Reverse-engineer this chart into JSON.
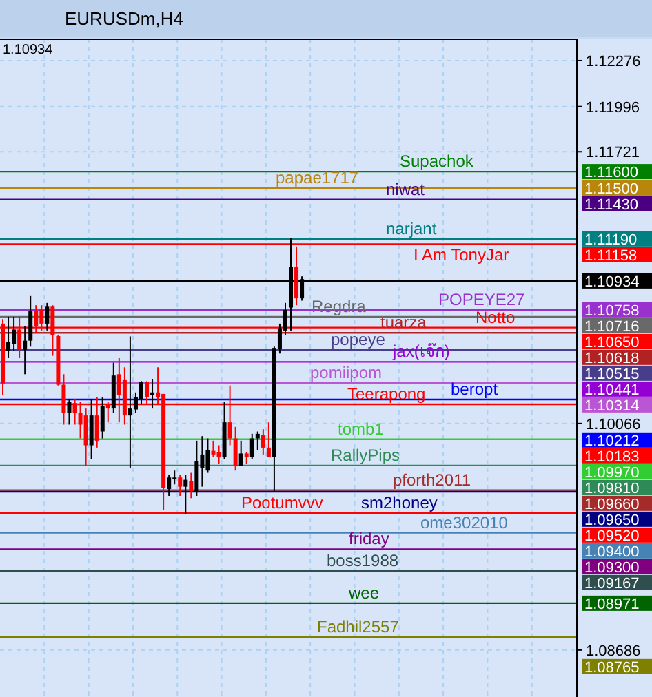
{
  "chart_data": {
    "type": "candlestick",
    "title": "EURUSDm,H4",
    "categories": [
      null,
      null,
      null,
      null,
      null,
      null,
      null,
      null,
      null,
      null,
      null,
      null,
      null,
      null,
      null,
      null,
      null,
      null,
      null,
      null,
      null,
      null,
      null,
      null,
      null,
      null,
      null,
      null,
      null,
      null,
      null,
      null,
      null,
      null,
      null,
      null,
      null,
      null,
      null,
      null,
      null,
      null,
      null,
      null,
      null,
      null,
      null,
      null,
      null,
      null,
      null,
      null,
      null,
      null,
      null,
      null,
      null,
      null,
      null,
      null,
      null,
      null,
      null,
      null,
      null,
      null,
      null,
      null,
      null,
      null,
      null,
      null,
      null,
      null,
      null,
      null,
      null,
      null,
      null,
      null,
      null,
      null,
      null,
      null,
      null,
      null,
      null,
      null,
      null,
      null,
      null,
      null,
      null,
      null,
      null,
      null,
      null,
      null,
      null,
      null,
      null,
      null,
      null,
      null
    ],
    "ohlc": [
      [
        1.10674,
        1.10702,
        1.1024,
        1.1031
      ],
      [
        1.10506,
        1.10716,
        1.10464,
        1.10562
      ],
      [
        1.10548,
        1.10716,
        1.10506,
        1.10638
      ],
      [
        1.10638,
        1.10716,
        1.10464,
        1.1052
      ],
      [
        1.10515,
        1.1066,
        1.10366,
        1.1057
      ],
      [
        1.1057,
        1.10842,
        1.10534,
        1.10752
      ],
      [
        1.10752,
        1.10786,
        1.10618,
        1.1066
      ],
      [
        1.10758,
        1.10786,
        1.10632,
        1.10674
      ],
      [
        1.10674,
        1.108,
        1.10632,
        1.10777
      ],
      [
        1.10777,
        1.10786,
        1.10478,
        1.10604
      ],
      [
        1.10598,
        1.10604,
        1.10297,
        1.10302
      ],
      [
        1.10302,
        1.10366,
        1.10059,
        1.10129
      ],
      [
        1.10129,
        1.10213,
        1.10059,
        1.10199
      ],
      [
        1.1019,
        1.10213,
        1.10059,
        1.10129
      ],
      [
        1.10129,
        1.10199,
        1.09975,
        1.10059
      ],
      [
        1.10115,
        1.10157,
        1.09807,
        1.09933
      ],
      [
        1.09933,
        1.10213,
        1.09849,
        1.10115
      ],
      [
        1.10115,
        1.10227,
        1.09919,
        1.09961
      ],
      [
        1.10017,
        1.10227,
        1.09975,
        1.10171
      ],
      [
        1.10185,
        1.10199,
        1.10073,
        1.10157
      ],
      [
        1.10157,
        1.10436,
        1.10129,
        1.10358
      ],
      [
        1.10366,
        1.10464,
        1.10073,
        1.1024
      ],
      [
        1.1033,
        1.10408,
        1.10059,
        1.10115
      ],
      [
        1.10115,
        1.10596,
        1.09793,
        1.10157
      ],
      [
        1.10151,
        1.10255,
        1.10129,
        1.10227
      ],
      [
        1.10213,
        1.10324,
        1.10185,
        1.10319
      ],
      [
        1.10319,
        1.10324,
        1.10185,
        1.10227
      ],
      [
        1.1024,
        1.10338,
        1.10157,
        1.10255
      ],
      [
        1.10255,
        1.10408,
        1.10185,
        1.10227
      ],
      [
        1.10246,
        1.10246,
        1.09541,
        1.09673
      ],
      [
        1.09667,
        1.09751,
        1.09625,
        1.09737
      ],
      [
        1.09732,
        1.09779,
        1.09695,
        1.09737
      ],
      [
        1.09737,
        1.09751,
        1.09625,
        1.09681
      ],
      [
        1.09681,
        1.09751,
        1.09513,
        1.09723
      ],
      [
        1.09715,
        1.09765,
        1.09611,
        1.09653
      ],
      [
        1.09653,
        1.09961,
        1.09625,
        1.09835
      ],
      [
        1.09793,
        1.09989,
        1.09681,
        1.09877
      ],
      [
        1.09779,
        1.09975,
        1.09765,
        1.09905
      ],
      [
        1.09899,
        1.09961,
        1.09863,
        1.09877
      ],
      [
        1.09891,
        1.09933,
        1.09821,
        1.09863
      ],
      [
        1.09863,
        1.10199,
        1.09849,
        1.10073
      ],
      [
        1.10073,
        1.10297,
        1.09933,
        1.09975
      ],
      [
        1.09975,
        1.10045,
        1.09779,
        1.09807
      ],
      [
        1.09807,
        1.09961,
        1.09807,
        1.09883
      ],
      [
        1.09883,
        1.09891,
        1.09821,
        1.09863
      ],
      [
        1.09863,
        1.10003,
        1.09849,
        1.09975
      ],
      [
        1.09975,
        1.10017,
        1.09905,
        1.10003
      ],
      [
        1.09994,
        1.10031,
        1.09877,
        1.09919
      ],
      [
        1.09919,
        1.10073,
        1.09863,
        1.09863
      ],
      [
        1.09863,
        1.10534,
        1.09653,
        1.10526
      ],
      [
        1.1052,
        1.10674,
        1.10492,
        1.10646
      ],
      [
        1.10632,
        1.108,
        1.10604,
        1.10758
      ],
      [
        1.10772,
        1.11194,
        1.10632,
        1.11018
      ],
      [
        1.11018,
        1.11144,
        1.10786,
        1.10828
      ],
      [
        1.10828,
        1.10962,
        1.10814,
        1.10945
      ],
      null,
      null,
      null,
      null,
      null,
      null,
      null,
      null,
      null,
      null,
      null,
      null,
      null,
      null,
      null,
      null,
      null,
      null,
      null,
      null,
      null,
      null,
      null,
      null,
      null,
      null,
      null,
      null,
      null,
      null,
      null,
      null,
      null,
      null,
      null,
      null,
      null,
      null,
      null,
      null,
      null,
      null,
      null,
      null,
      null,
      null,
      null,
      null,
      null
    ],
    "ylim": [
      1.084,
      1.1241
    ],
    "yticks": [
      1.12276,
      1.11996,
      1.11721,
      1.10066,
      1.08686
    ],
    "tick_labels": "y",
    "grid": true,
    "annotations": [
      "1.11600",
      "1.11500",
      "1.11430",
      "1.11190",
      "1.11158",
      "1.10934",
      "1.10758",
      "1.10716",
      "1.10650",
      "1.10618",
      "1.10515",
      "1.10441",
      "1.10314",
      "1.10212",
      "1.10183",
      "1.09970",
      "1.09810",
      "1.09660",
      "1.09650",
      "1.09520",
      "1.09400",
      "1.09300",
      "1.09167",
      "1.08971",
      "1.08765",
      "1.10934"
    ],
    "ref_lines": [
      {
        "axis": "y",
        "value": 1.116,
        "label": "Supachok",
        "color": "#008000"
      },
      {
        "axis": "y",
        "value": 1.115,
        "label": "papae1717",
        "color": "#b8860b"
      },
      {
        "axis": "y",
        "value": 1.1143,
        "label": "niwat",
        "color": "#4b0082"
      },
      {
        "axis": "y",
        "value": 1.1119,
        "label": "narjant",
        "color": "#008080"
      },
      {
        "axis": "y",
        "value": 1.11158,
        "label": "I Am TonyJar",
        "color": "#ff0000"
      },
      {
        "axis": "y",
        "value": 1.10934,
        "label": null,
        "color": "#000000"
      },
      {
        "axis": "y",
        "value": 1.10758,
        "label": "POPEYE27",
        "color": "#9932cc"
      },
      {
        "axis": "y",
        "value": 1.10716,
        "label": "Regdra",
        "color": "#696969"
      },
      {
        "axis": "y",
        "value": 1.1065,
        "label": "Notto",
        "color": "#ff0000"
      },
      {
        "axis": "y",
        "value": 1.10618,
        "label": "tuarza",
        "color": "#b22222"
      },
      {
        "axis": "y",
        "value": 1.10515,
        "label": "popeye",
        "color": "#483d8b"
      },
      {
        "axis": "y",
        "value": 1.10441,
        "label": "jax(เจ๊ก)",
        "color": "#9400d3"
      },
      {
        "axis": "y",
        "value": 1.10314,
        "label": "pomiipom",
        "color": "#ba55d3"
      },
      {
        "axis": "y",
        "value": 1.10212,
        "label": "beropt",
        "color": "#0000ff"
      },
      {
        "axis": "y",
        "value": 1.10183,
        "label": "Teerapong",
        "color": "#ff0000"
      },
      {
        "axis": "y",
        "value": 1.0997,
        "label": "tomb1",
        "color": "#32cd32"
      },
      {
        "axis": "y",
        "value": 1.0981,
        "label": "RallyPips",
        "color": "#2e8b57"
      },
      {
        "axis": "y",
        "value": 1.0966,
        "label": "pforth2011",
        "color": "#a52a2a"
      },
      {
        "axis": "y",
        "value": 1.0965,
        "label": "sm2honey",
        "color": "#000080"
      },
      {
        "axis": "y",
        "value": 1.0952,
        "label": "Pootumvvv",
        "color": "#ff0000"
      },
      {
        "axis": "y",
        "value": 1.094,
        "label": "ome302010",
        "color": "#4682b4"
      },
      {
        "axis": "y",
        "value": 1.093,
        "label": "friday",
        "color": "#800080"
      },
      {
        "axis": "y",
        "value": 1.09167,
        "label": "boss1988",
        "color": "#2f4f4f"
      },
      {
        "axis": "y",
        "value": 1.08971,
        "label": "wee",
        "color": "#006400"
      },
      {
        "axis": "y",
        "value": 1.08765,
        "label": "Fadhil2557",
        "color": "#808000"
      }
    ]
  }
}
